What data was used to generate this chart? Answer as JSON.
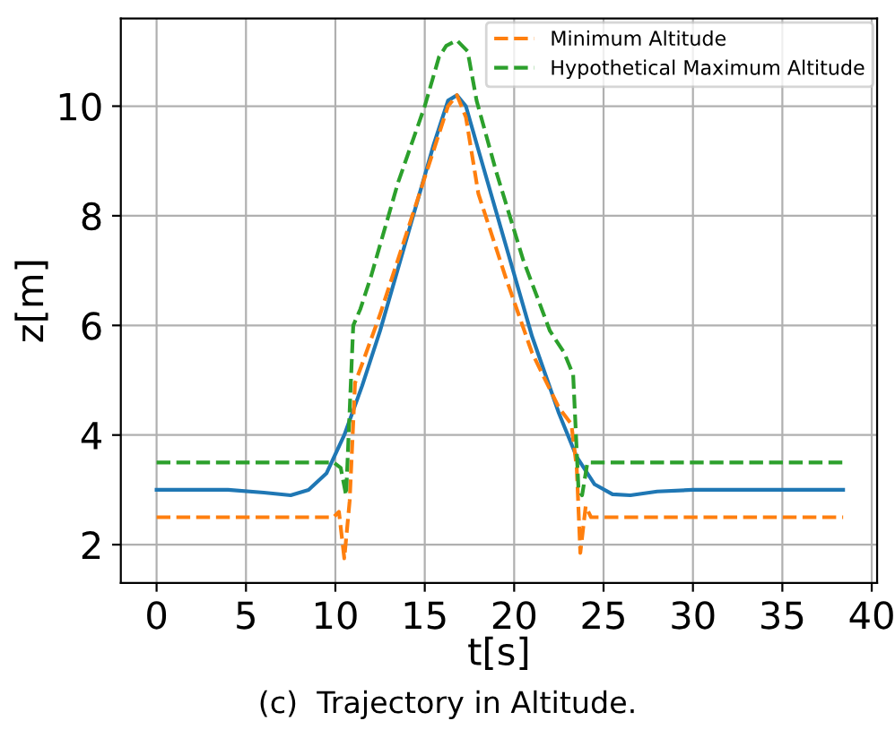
{
  "chart_data": {
    "type": "line",
    "xlabel": "t[s]",
    "ylabel": "z[m]",
    "xlim": [
      -2,
      40.3
    ],
    "ylim": [
      1.3,
      11.6
    ],
    "xticks": [
      0,
      5,
      10,
      15,
      20,
      25,
      30,
      35,
      40
    ],
    "yticks": [
      2,
      4,
      6,
      8,
      10
    ],
    "grid": true,
    "legend": "top right",
    "annotations": [
      "(c)  Trajectory in Altitude."
    ],
    "series": [
      {
        "color": "#1f77b4",
        "line_style": "solid",
        "x": [
          0,
          4,
          6,
          7.5,
          8.5,
          9.5,
          10.5,
          11.5,
          12.5,
          14,
          15.5,
          16.3,
          16.8,
          17.3,
          18,
          19.5,
          21,
          22.5,
          23.5,
          24.5,
          25.5,
          26.5,
          28,
          30,
          38.4
        ],
        "values": [
          3.0,
          3.0,
          2.95,
          2.9,
          3.0,
          3.3,
          4.0,
          4.9,
          5.9,
          7.6,
          9.3,
          10.1,
          10.2,
          10.0,
          9.2,
          7.5,
          5.8,
          4.4,
          3.6,
          3.1,
          2.92,
          2.9,
          2.97,
          3.0,
          3.0
        ]
      },
      {
        "name": "Minimum Altitude",
        "color": "#ff7f0e",
        "line_style": "dashed",
        "x": [
          0,
          9.9,
          10.2,
          10.5,
          10.8,
          11.1,
          11.5,
          12.5,
          14,
          15.5,
          16.3,
          16.8,
          17.3,
          18,
          19.5,
          21,
          22.5,
          23.2,
          23.5,
          23.7,
          24.0,
          24.3,
          24.6,
          38.4
        ],
        "values": [
          2.5,
          2.5,
          2.6,
          1.75,
          2.8,
          4.95,
          5.3,
          6.2,
          7.7,
          9.2,
          10.0,
          10.2,
          9.8,
          8.4,
          6.9,
          5.5,
          4.5,
          4.2,
          3.4,
          1.85,
          2.7,
          2.5,
          2.5,
          2.5
        ]
      },
      {
        "name": "Hypothetical Maximum Altitude",
        "color": "#2ca02c",
        "line_style": "dashed",
        "x": [
          0,
          9.9,
          10.3,
          10.6,
          11.0,
          11.4,
          12,
          13.5,
          15,
          15.8,
          16.2,
          16.8,
          17.4,
          17.9,
          19,
          20.5,
          22,
          22.8,
          23.3,
          23.6,
          23.8,
          24.1,
          24.4,
          38.4
        ],
        "values": [
          3.5,
          3.5,
          3.4,
          2.9,
          6.0,
          6.3,
          6.9,
          8.6,
          10.0,
          10.9,
          11.1,
          11.2,
          11.0,
          10.1,
          8.8,
          7.2,
          5.9,
          5.5,
          5.1,
          3.0,
          2.9,
          3.5,
          3.5,
          3.5
        ]
      }
    ]
  }
}
